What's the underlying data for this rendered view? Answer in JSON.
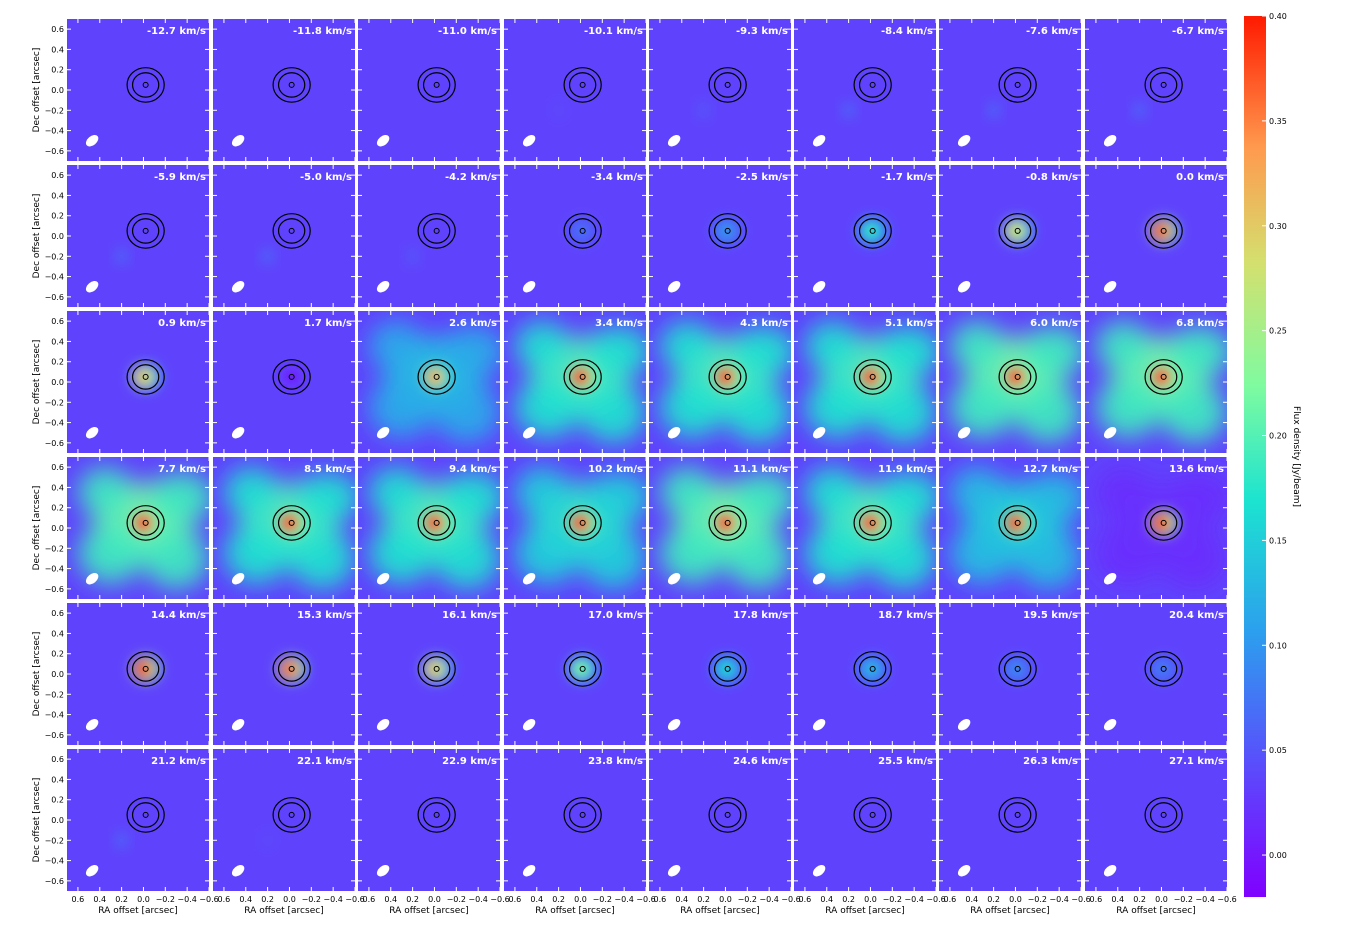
{
  "chart_data": {
    "type": "heatmap",
    "description_kind": "channel-map grid",
    "rows": 6,
    "cols": 8,
    "channels": [
      "-12.7 km/s",
      "-11.8 km/s",
      "-11.0 km/s",
      "-10.1 km/s",
      "-9.3 km/s",
      "-8.4 km/s",
      "-7.6 km/s",
      "-6.7 km/s",
      "-5.9 km/s",
      "-5.0 km/s",
      "-4.2 km/s",
      "-3.4 km/s",
      "-2.5 km/s",
      "-1.7 km/s",
      "-0.8 km/s",
      "0.0 km/s",
      "0.9 km/s",
      "1.7 km/s",
      "2.6 km/s",
      "3.4 km/s",
      "4.3 km/s",
      "5.1 km/s",
      "6.0 km/s",
      "6.8 km/s",
      "7.7 km/s",
      "8.5 km/s",
      "9.4 km/s",
      "10.2 km/s",
      "11.1 km/s",
      "11.9 km/s",
      "12.7 km/s",
      "13.6 km/s",
      "14.4 km/s",
      "15.3 km/s",
      "16.1 km/s",
      "17.0 km/s",
      "17.8 km/s",
      "18.7 km/s",
      "19.5 km/s",
      "20.4 km/s",
      "21.2 km/s",
      "22.1 km/s",
      "22.9 km/s",
      "23.8 km/s",
      "24.6 km/s",
      "25.5 km/s",
      "26.3 km/s",
      "27.1 km/s"
    ],
    "peak_flux": [
      0.02,
      0.02,
      0.03,
      0.04,
      0.05,
      0.06,
      0.06,
      0.06,
      0.06,
      0.06,
      0.05,
      0.07,
      0.1,
      0.18,
      0.28,
      0.38,
      0.3,
      0.0,
      0.32,
      0.4,
      0.4,
      0.4,
      0.4,
      0.4,
      0.4,
      0.4,
      0.4,
      0.4,
      0.4,
      0.4,
      0.4,
      0.4,
      0.4,
      0.37,
      0.3,
      0.22,
      0.16,
      0.13,
      0.09,
      0.08,
      0.06,
      0.04,
      0.03,
      0.03,
      0.02,
      0.02,
      0.02,
      0.02
    ],
    "extended_emission": [
      0,
      0,
      0,
      0,
      0,
      0,
      0,
      0,
      0,
      0,
      0,
      0,
      0,
      0,
      0,
      0,
      0,
      0,
      0.14,
      0.2,
      0.2,
      0.2,
      0.22,
      0.22,
      0.22,
      0.2,
      0.2,
      0.18,
      0.22,
      0.2,
      0.16,
      0.02,
      0,
      0,
      0,
      0,
      0,
      0,
      0,
      0,
      0,
      0,
      0,
      0,
      0,
      0,
      0,
      0
    ],
    "background_flux": 0.035,
    "xlabel": "RA offset [arcsec]",
    "ylabel": "Dec offset [arcsec]",
    "xlim": [
      0.7,
      -0.6
    ],
    "ylim": [
      -0.7,
      0.7
    ],
    "x_ticks": [
      "0.6",
      "0.4",
      "0.2",
      "0.0",
      "−0.2",
      "−0.4",
      "−0.6"
    ],
    "x_tick_values": [
      0.6,
      0.4,
      0.2,
      0.0,
      -0.2,
      -0.4,
      -0.6
    ],
    "y_ticks": [
      "0.6",
      "0.4",
      "0.2",
      "0.0",
      "−0.2",
      "−0.4",
      "−0.6"
    ],
    "y_tick_values": [
      0.6,
      0.4,
      0.2,
      0.0,
      -0.2,
      -0.4,
      -0.6
    ],
    "colorbar": {
      "label": "Flux density [Jy/beam]",
      "range": [
        -0.02,
        0.4
      ],
      "ticks": [
        "0.00",
        "0.05",
        "0.10",
        "0.15",
        "0.20",
        "0.25",
        "0.30",
        "0.35",
        "0.40"
      ],
      "tick_values": [
        0.0,
        0.05,
        0.1,
        0.15,
        0.2,
        0.25,
        0.3,
        0.35,
        0.4
      ],
      "colormap": "rainbow"
    },
    "source_center": [
      -0.02,
      0.05
    ],
    "ring_radii": [
      0.12,
      0.17
    ],
    "beam_center": [
      0.47,
      -0.5
    ],
    "grid": false
  },
  "colors": {
    "background": "#ffffff",
    "label_text": "#ffffff",
    "ring": "#000000"
  }
}
